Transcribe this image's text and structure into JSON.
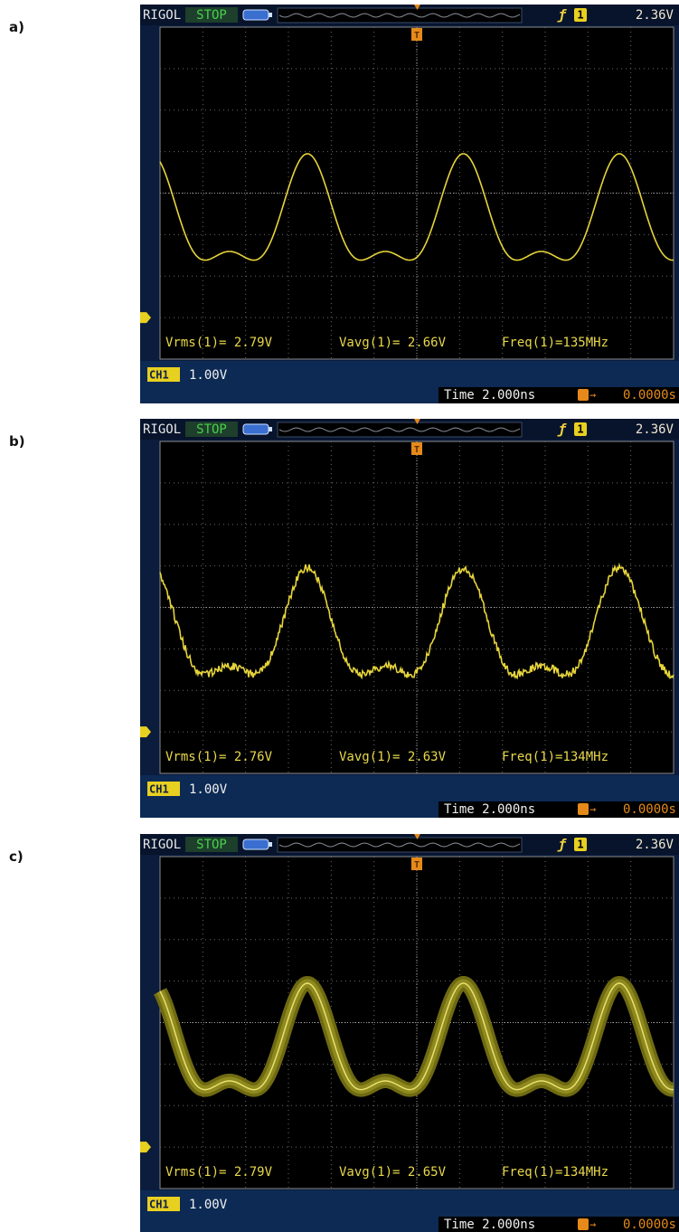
{
  "panels": [
    {
      "label": "a)",
      "header": {
        "brand": "RIGOL",
        "status": "STOP",
        "trigger_source": "1",
        "trigger_level": "2.36V"
      },
      "measurements": [
        "Vrms(1)= 2.79V",
        "Vavg(1)= 2.66V",
        "Freq(1)=135MHz"
      ],
      "footer": {
        "channel": "CH1",
        "volts_per_div": "1.00V",
        "timebase": "Time 2.000ns",
        "trigger_offset": "0.0000s"
      }
    },
    {
      "label": "b)",
      "header": {
        "brand": "RIGOL",
        "status": "STOP",
        "trigger_source": "1",
        "trigger_level": "2.36V"
      },
      "measurements": [
        "Vrms(1)= 2.76V",
        "Vavg(1)= 2.63V",
        "Freq(1)=134MHz"
      ],
      "footer": {
        "channel": "CH1",
        "volts_per_div": "1.00V",
        "timebase": "Time 2.000ns",
        "trigger_offset": "0.0000s"
      }
    },
    {
      "label": "c)",
      "header": {
        "brand": "RIGOL",
        "status": "STOP",
        "trigger_source": "1",
        "trigger_level": "2.36V"
      },
      "measurements": [
        "Vrms(1)= 2.79V",
        "Vavg(1)= 2.65V",
        "Freq(1)=134MHz"
      ],
      "footer": {
        "channel": "CH1",
        "volts_per_div": "1.00V",
        "timebase": "Time 2.000ns",
        "trigger_offset": "0.0000s"
      }
    }
  ]
}
